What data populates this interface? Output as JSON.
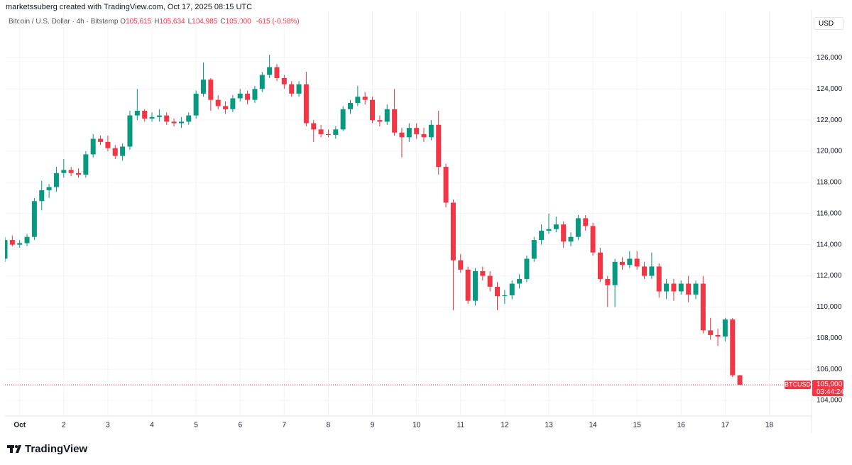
{
  "header": {
    "credit": "marketssuberg created with TradingView.com, Oct 17, 2025 08:15 UTC",
    "symbol": "Bitcoin / U.S. Dollar · 4h · Bitstamp",
    "fields": [
      {
        "key": "O",
        "value": "105,615"
      },
      {
        "key": "H",
        "value": "105,634"
      },
      {
        "key": "L",
        "value": "104,985"
      },
      {
        "key": "C",
        "value": "105,000"
      }
    ],
    "change": "-615 (-0.58%)",
    "currency": "USD"
  },
  "footer": {
    "brand": "TradingView"
  },
  "chart_data": {
    "type": "candlestick",
    "up_color": "#089981",
    "down_color": "#f23645",
    "grid": true,
    "xlim": [
      -8,
      431
    ],
    "ylim": [
      103000,
      128800
    ],
    "xticks": [
      {
        "value": 0,
        "label": "Oct"
      },
      {
        "value": 24,
        "label": "2"
      },
      {
        "value": 48,
        "label": "3"
      },
      {
        "value": 72,
        "label": "4"
      },
      {
        "value": 96,
        "label": "5"
      },
      {
        "value": 120,
        "label": "6"
      },
      {
        "value": 144,
        "label": "7"
      },
      {
        "value": 168,
        "label": "8"
      },
      {
        "value": 192,
        "label": "9"
      },
      {
        "value": 216,
        "label": "10"
      },
      {
        "value": 240,
        "label": "11"
      },
      {
        "value": 264,
        "label": "12"
      },
      {
        "value": 288,
        "label": "13"
      },
      {
        "value": 312,
        "label": "14"
      },
      {
        "value": 336,
        "label": "15"
      },
      {
        "value": 360,
        "label": "16"
      },
      {
        "value": 384,
        "label": "17"
      },
      {
        "value": 408,
        "label": "18"
      }
    ],
    "yticks": [
      {
        "value": 104000,
        "label": "104,000"
      },
      {
        "value": 106000,
        "label": "106,000"
      },
      {
        "value": 108000,
        "label": "108,000"
      },
      {
        "value": 110000,
        "label": "110,000"
      },
      {
        "value": 112000,
        "label": "112,000"
      },
      {
        "value": 114000,
        "label": "114,000"
      },
      {
        "value": 116000,
        "label": "116,000"
      },
      {
        "value": 118000,
        "label": "118,000"
      },
      {
        "value": 120000,
        "label": "120,000"
      },
      {
        "value": 122000,
        "label": "122,000"
      },
      {
        "value": 124000,
        "label": "124,000"
      },
      {
        "value": 126000,
        "label": "126,000"
      }
    ],
    "x": [
      -8,
      -4,
      0,
      4,
      8,
      12,
      16,
      20,
      24,
      28,
      32,
      36,
      40,
      44,
      48,
      52,
      56,
      60,
      64,
      68,
      72,
      76,
      80,
      84,
      88,
      92,
      96,
      100,
      104,
      108,
      112,
      116,
      120,
      124,
      128,
      132,
      136,
      140,
      144,
      148,
      152,
      156,
      160,
      164,
      168,
      172,
      176,
      180,
      184,
      188,
      192,
      196,
      200,
      204,
      208,
      212,
      216,
      220,
      224,
      228,
      232,
      236,
      240,
      244,
      248,
      252,
      256,
      260,
      264,
      268,
      272,
      276,
      280,
      284,
      288,
      292,
      296,
      300,
      304,
      308,
      312,
      316,
      320,
      324,
      328,
      332,
      336,
      340,
      344,
      348,
      352,
      356,
      360,
      364,
      368,
      372,
      376,
      380,
      384,
      388,
      392
    ],
    "open": [
      113100,
      114300,
      114000,
      114100,
      114500,
      116800,
      117500,
      117700,
      118600,
      118800,
      118600,
      118500,
      119800,
      120800,
      120600,
      120200,
      119700,
      120300,
      122300,
      122600,
      122100,
      122200,
      122300,
      121900,
      121800,
      121900,
      122300,
      123700,
      124600,
      123300,
      122900,
      122700,
      123400,
      123700,
      123300,
      124000,
      124900,
      125400,
      124700,
      124300,
      123700,
      124300,
      121800,
      121400,
      121100,
      121050,
      121400,
      122700,
      123100,
      123500,
      123300,
      122000,
      121900,
      122700,
      121200,
      120900,
      121500,
      121100,
      120900,
      121700,
      119000,
      116700,
      113000,
      112400,
      110400,
      112300,
      112000,
      111300,
      110700,
      110750,
      111500,
      111800,
      113100,
      114300,
      114900,
      115000,
      115300,
      114200,
      114500,
      115700,
      115200,
      113500,
      111800,
      111400,
      112900,
      112700,
      113100,
      112600,
      112000,
      112600,
      111000,
      111500,
      111000,
      111500,
      110800,
      111500,
      108500,
      108200,
      108100,
      109200,
      105615
    ],
    "high": [
      114500,
      114600,
      114300,
      114700,
      117000,
      118100,
      117900,
      119000,
      119500,
      119000,
      118900,
      120000,
      121100,
      121000,
      121000,
      120400,
      120500,
      122600,
      124000,
      122700,
      122500,
      122700,
      122500,
      122100,
      122200,
      122500,
      123900,
      125700,
      124700,
      123600,
      123200,
      123600,
      124000,
      123900,
      124200,
      125100,
      126200,
      125600,
      124900,
      124500,
      124500,
      125100,
      122000,
      121700,
      121400,
      121600,
      122900,
      123300,
      124200,
      123800,
      123500,
      122300,
      123000,
      124000,
      121500,
      121800,
      121800,
      121500,
      122000,
      122600,
      119200,
      116900,
      113400,
      112600,
      112500,
      112600,
      112300,
      111600,
      111100,
      111700,
      112100,
      113300,
      114500,
      115300,
      116000,
      115800,
      115500,
      114800,
      115900,
      115900,
      115400,
      113800,
      112000,
      113100,
      113200,
      113600,
      113600,
      112900,
      113500,
      112800,
      111800,
      111800,
      111700,
      112000,
      111700,
      112000,
      109300,
      108600,
      109300,
      109300,
      105634
    ],
    "low": [
      112900,
      113900,
      113800,
      113900,
      114300,
      116200,
      117000,
      117400,
      118300,
      118400,
      118300,
      118300,
      119600,
      120400,
      120000,
      119500,
      119400,
      120100,
      122000,
      121900,
      121900,
      121900,
      121700,
      121600,
      121500,
      121700,
      122100,
      123500,
      122600,
      122700,
      122400,
      122500,
      123200,
      123000,
      123100,
      123800,
      124700,
      124500,
      124000,
      123500,
      123500,
      121600,
      120600,
      120900,
      120900,
      120800,
      121300,
      122400,
      122900,
      123000,
      121800,
      121600,
      121700,
      121000,
      119600,
      120600,
      120800,
      120600,
      120700,
      118500,
      116400,
      109800,
      112200,
      110200,
      110100,
      111700,
      111000,
      109800,
      110200,
      110500,
      111200,
      111600,
      112900,
      114000,
      114700,
      114800,
      113800,
      113900,
      114300,
      114900,
      113300,
      111600,
      110000,
      110000,
      112400,
      112500,
      112400,
      111800,
      111800,
      110600,
      110500,
      110400,
      110800,
      110300,
      110500,
      108300,
      107900,
      107500,
      107800,
      105500,
      104985
    ],
    "close": [
      114300,
      114000,
      114100,
      114500,
      116800,
      117500,
      117700,
      118600,
      118800,
      118600,
      118500,
      119800,
      120800,
      120600,
      120200,
      119700,
      120300,
      122300,
      122600,
      122100,
      122200,
      122300,
      121900,
      121800,
      121900,
      122300,
      123700,
      124600,
      123300,
      122900,
      122700,
      123400,
      123700,
      123300,
      124000,
      124900,
      125400,
      124700,
      124300,
      123700,
      124300,
      121800,
      121400,
      121100,
      121050,
      121400,
      122700,
      123100,
      123500,
      123300,
      122000,
      121900,
      122700,
      121200,
      120900,
      121500,
      121100,
      120900,
      121700,
      119000,
      116700,
      113000,
      112400,
      110400,
      112300,
      112000,
      111300,
      110700,
      110750,
      111500,
      111800,
      113100,
      114300,
      114900,
      115000,
      115300,
      114200,
      114500,
      115700,
      115200,
      113500,
      111800,
      111400,
      112900,
      112700,
      113100,
      112600,
      112000,
      112600,
      111000,
      111500,
      111000,
      111500,
      110800,
      111500,
      108500,
      108200,
      108100,
      109200,
      105615,
      105000
    ],
    "last_price": {
      "symbol": "BTCUSD",
      "value": 105000,
      "value_label": "105,000",
      "countdown": "03:44:24",
      "color": "#f23645"
    }
  }
}
